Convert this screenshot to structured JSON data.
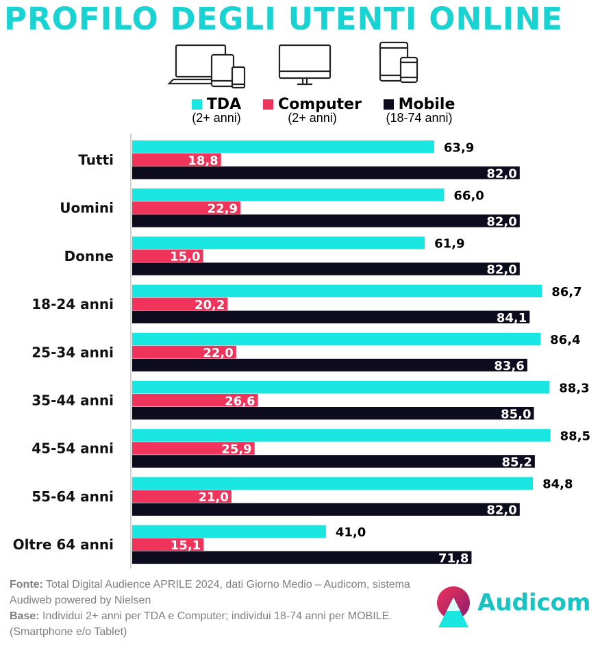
{
  "title": "PROFILO DEGLI UTENTI ONLINE",
  "icons": [
    "devices-icon",
    "desktop-icon",
    "tablet-phone-icon"
  ],
  "legend": [
    {
      "name": "TDA",
      "sub": "(2+ anni)",
      "color": "#19e6e0"
    },
    {
      "name": "Computer",
      "sub": "(2+ anni)",
      "color": "#f0335a"
    },
    {
      "name": "Mobile",
      "sub": "(18-74 anni)",
      "color": "#0c0c1e"
    }
  ],
  "chart_data": {
    "type": "bar",
    "orientation": "horizontal",
    "categories": [
      "Tutti",
      "Uomini",
      "Donne",
      "18-24 anni",
      "25-34 anni",
      "35-44 anni",
      "45-54 anni",
      "55-64 anni",
      "Oltre 64 anni"
    ],
    "series": [
      {
        "name": "TDA",
        "values": [
          63.9,
          66.0,
          61.9,
          86.7,
          86.4,
          88.3,
          88.5,
          84.8,
          41.0
        ],
        "labels": [
          "63,9",
          "66,0",
          "61,9",
          "86,7",
          "86,4",
          "88,3",
          "88,5",
          "84,8",
          "41,0"
        ],
        "color": "#19e6e0",
        "label_color": "#000000",
        "label_position": "outside"
      },
      {
        "name": "Computer",
        "values": [
          18.8,
          22.9,
          15.0,
          20.2,
          22.0,
          26.6,
          25.9,
          21.0,
          15.1
        ],
        "labels": [
          "18,8",
          "22,9",
          "15,0",
          "20,2",
          "22,0",
          "26,6",
          "25,9",
          "21,0",
          "15,1"
        ],
        "color": "#f0335a",
        "label_color": "#ffffff",
        "label_position": "inside"
      },
      {
        "name": "Mobile",
        "values": [
          82.0,
          82.0,
          82.0,
          84.1,
          83.6,
          85.0,
          85.2,
          82.0,
          71.8
        ],
        "labels": [
          "82,0",
          "82,0",
          "82,0",
          "84,1",
          "83,6",
          "85,0",
          "85,2",
          "82,0",
          "71,8"
        ],
        "color": "#0c0c1e",
        "label_color": "#ffffff",
        "label_position": "inside"
      }
    ],
    "xlim": [
      0,
      100
    ],
    "grid": false,
    "legend_position": "top"
  },
  "footer": {
    "fonte_label": "Fonte:",
    "fonte_text": " Total Digital Audience APRILE 2024, dati Giorno Medio – Audicom, sistema Audiweb powered by Nielsen",
    "base_label": "Base:",
    "base_text": "  Individui 2+ anni per TDA e Computer; individui 18-74 anni per MOBILE.(Smartphone e/o Tablet)"
  },
  "logo": {
    "text": "Audicom",
    "color": "#19c3c3"
  }
}
